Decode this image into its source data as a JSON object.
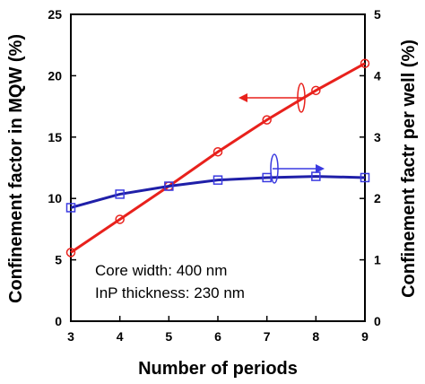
{
  "chart_data": {
    "type": "line",
    "xlabel": "Number of periods",
    "ylabel_left": "Confinement factor in MQW (%)",
    "ylabel_right": "Confinement factr per well (%)",
    "xlim": [
      3,
      9
    ],
    "ylim_left": [
      0,
      25
    ],
    "ylim_right": [
      0,
      5
    ],
    "x_ticks": [
      "3",
      "4",
      "5",
      "6",
      "7",
      "8",
      "9"
    ],
    "y_ticks_left": [
      "0",
      "5",
      "10",
      "15",
      "20",
      "25"
    ],
    "y_ticks_right": [
      "0",
      "1",
      "2",
      "3",
      "4",
      "5"
    ],
    "x": [
      3,
      4,
      5,
      6,
      7,
      8,
      9
    ],
    "series": [
      {
        "axis": "left",
        "marker": "circle",
        "color": "#e8211c",
        "values": [
          5.6,
          8.3,
          11.0,
          13.8,
          16.4,
          18.8,
          21.0
        ]
      },
      {
        "axis": "right",
        "marker": "square",
        "color": "#1f1fa8",
        "values": [
          1.85,
          2.07,
          2.2,
          2.3,
          2.34,
          2.36,
          2.34
        ]
      }
    ],
    "annotations": [
      "Core width: 400 nm",
      "InP thickness: 230 nm"
    ],
    "grid": false
  }
}
